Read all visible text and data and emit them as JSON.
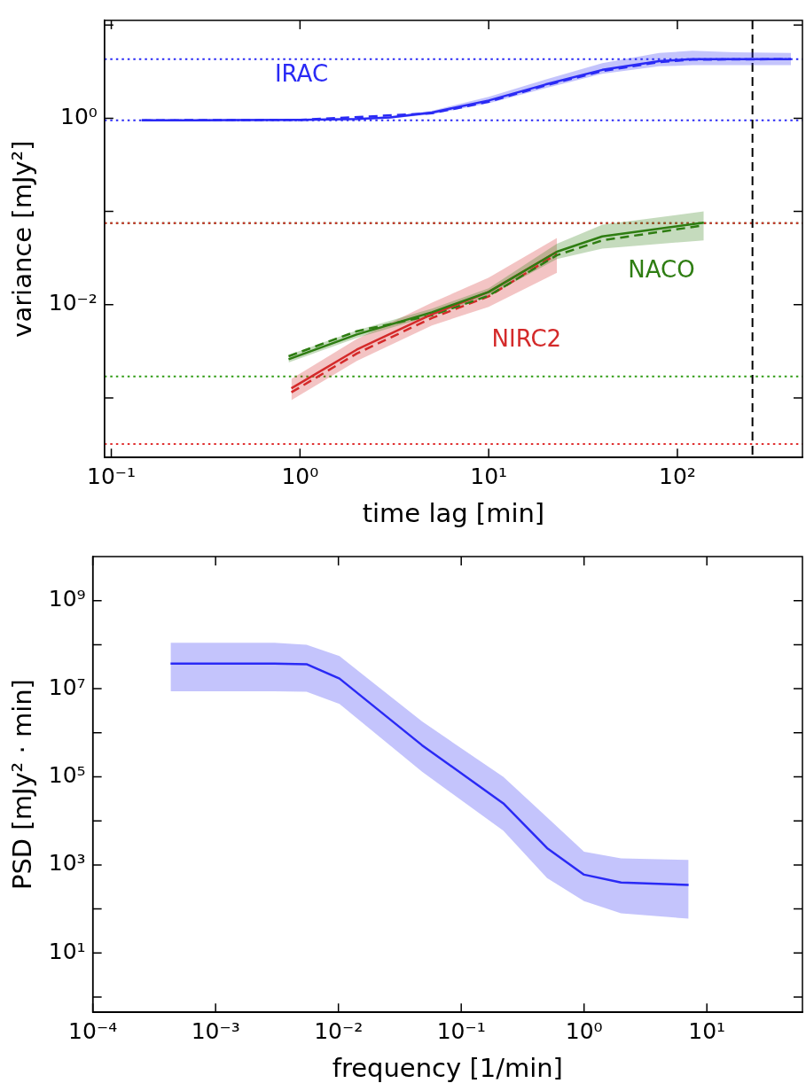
{
  "chart_data": [
    {
      "type": "line",
      "xlabel": "time lag [min]",
      "ylabel": "variance [mJy²]",
      "log": "xy",
      "grid": false,
      "marker": "none",
      "xlim": [
        0.092,
        460
      ],
      "ylim": [
        0.00023,
        11.2
      ],
      "xticks": [
        {
          "value": 0.1,
          "label": "10⁻¹"
        },
        {
          "value": 1,
          "label": "10⁰"
        },
        {
          "value": 10,
          "label": "10¹"
        },
        {
          "value": 100,
          "label": "10²"
        }
      ],
      "yticks": [
        {
          "value": 0.001,
          "label": null
        },
        {
          "value": 0.01,
          "label": "10⁻²"
        },
        {
          "value": 0.1,
          "label": null
        },
        {
          "value": 1,
          "label": "10⁰"
        },
        {
          "value": 10,
          "label": null
        }
      ],
      "series": [
        {
          "name": "IRAC",
          "color": "#2a2af5",
          "line_style": "solid",
          "x": [
            0.145,
            0.3,
            1,
            2,
            3,
            5,
            10,
            20,
            40,
            80,
            120,
            200,
            400
          ],
          "values": [
            0.95,
            0.95,
            0.96,
            0.98,
            1.02,
            1.15,
            1.55,
            2.3,
            3.3,
            4.1,
            4.3,
            4.3,
            4.3
          ],
          "lower": [
            0.93,
            0.93,
            0.94,
            0.96,
            0.99,
            1.1,
            1.45,
            2.1,
            3.0,
            3.6,
            3.7,
            3.7,
            3.7
          ],
          "upper": [
            0.97,
            0.97,
            0.98,
            1.0,
            1.05,
            1.2,
            1.7,
            2.6,
            3.9,
            5.0,
            5.3,
            5.1,
            5.0
          ]
        },
        {
          "name": "NACO",
          "color": "#2e7d12",
          "line_style": "solid",
          "x": [
            0.87,
            2,
            5,
            10,
            23,
            40,
            138
          ],
          "values": [
            0.0026,
            0.0048,
            0.0083,
            0.0137,
            0.037,
            0.054,
            0.076
          ],
          "lower": [
            0.0024,
            0.0044,
            0.0076,
            0.0125,
            0.031,
            0.04,
            0.049
          ],
          "upper": [
            0.0029,
            0.0053,
            0.0091,
            0.015,
            0.045,
            0.072,
            0.1
          ]
        },
        {
          "name": "NIRC2",
          "color": "#d42a2a",
          "line_style": "solid",
          "x": [
            0.9,
            2,
            5,
            10,
            23
          ],
          "values": [
            0.00127,
            0.0033,
            0.0079,
            0.0137,
            0.037
          ],
          "lower": [
            0.00095,
            0.0025,
            0.006,
            0.0095,
            0.022
          ],
          "upper": [
            0.0016,
            0.0043,
            0.0105,
            0.0195,
            0.052
          ]
        },
        {
          "color": "#2a2af5",
          "line_style": "dashed",
          "x": [
            0.145,
            1,
            5,
            10,
            20,
            40,
            80,
            120,
            400
          ],
          "values": [
            0.95,
            0.96,
            1.13,
            1.5,
            2.25,
            3.2,
            4.0,
            4.25,
            4.3
          ]
        },
        {
          "color": "#2e7d12",
          "line_style": "dashed",
          "x": [
            0.87,
            2,
            5,
            10,
            23,
            40,
            138
          ],
          "values": [
            0.0028,
            0.0052,
            0.0077,
            0.0125,
            0.034,
            0.049,
            0.071
          ]
        },
        {
          "color": "#d42a2a",
          "line_style": "dashed",
          "x": [
            0.9,
            2,
            5,
            10,
            23
          ],
          "values": [
            0.00115,
            0.003,
            0.0072,
            0.0123,
            0.035
          ]
        }
      ],
      "ref_lines": [
        {
          "axis": "y",
          "value": 4.3,
          "color": "#2a2af5",
          "line_style": "dotted"
        },
        {
          "axis": "y",
          "value": 0.95,
          "color": "#2a2af5",
          "line_style": "dotted"
        },
        {
          "axis": "y",
          "value": 0.075,
          "color": "#2e7d12",
          "line_style": "dotted"
        },
        {
          "axis": "y",
          "value": 0.075,
          "color": "#d42a2a",
          "line_style": "dotted"
        },
        {
          "axis": "y",
          "value": 0.0017,
          "color": "#2e9a12",
          "line_style": "dotted"
        },
        {
          "axis": "y",
          "value": 0.00032,
          "color": "#e03030",
          "line_style": "dotted"
        },
        {
          "axis": "x",
          "value": 250,
          "color": "#000000",
          "line_style": "dashed"
        }
      ],
      "legend": false
    },
    {
      "type": "line",
      "xlabel": "frequency [1/min]",
      "ylabel": "PSD [mJy² · min]",
      "log": "xy",
      "grid": false,
      "legend": false,
      "marker": "none",
      "xlim": [
        0.0001,
        60
      ],
      "ylim": [
        0.45,
        10000000000
      ],
      "xticks": [
        {
          "value": 0.0001,
          "label": "10⁻⁴"
        },
        {
          "value": 0.001,
          "label": "10⁻³"
        },
        {
          "value": 0.01,
          "label": "10⁻²"
        },
        {
          "value": 0.1,
          "label": "10⁻¹"
        },
        {
          "value": 1,
          "label": "10⁰"
        },
        {
          "value": 10,
          "label": "10¹"
        }
      ],
      "yticks": [
        {
          "value": 1,
          "label": null
        },
        {
          "value": 10,
          "label": "10¹"
        },
        {
          "value": 100,
          "label": null
        },
        {
          "value": 1000,
          "label": "10³"
        },
        {
          "value": 10000,
          "label": null
        },
        {
          "value": 100000,
          "label": "10⁵"
        },
        {
          "value": 1000000,
          "label": null
        },
        {
          "value": 10000000,
          "label": "10⁷"
        },
        {
          "value": 100000000,
          "label": null
        },
        {
          "value": 1000000000,
          "label": "10⁹"
        }
      ],
      "series": [
        {
          "color": "#2a2af5",
          "line_style": "solid",
          "x": [
            0.00043,
            0.001,
            0.003,
            0.0055,
            0.0102,
            0.048,
            0.22,
            0.5,
            1,
            2,
            7.1
          ],
          "values": [
            37000000,
            37000000,
            37000000,
            36000000,
            17000000,
            520000,
            25000,
            2400,
            600,
            400,
            350
          ],
          "lower": [
            8700000,
            8700000,
            8700000,
            8500000,
            4500000,
            130000,
            6000,
            500,
            150,
            80,
            60
          ],
          "upper": [
            110000000,
            110000000,
            110000000,
            100000000,
            55000000,
            1800000,
            100000,
            12000,
            2000,
            1400,
            1300
          ]
        }
      ]
    }
  ]
}
